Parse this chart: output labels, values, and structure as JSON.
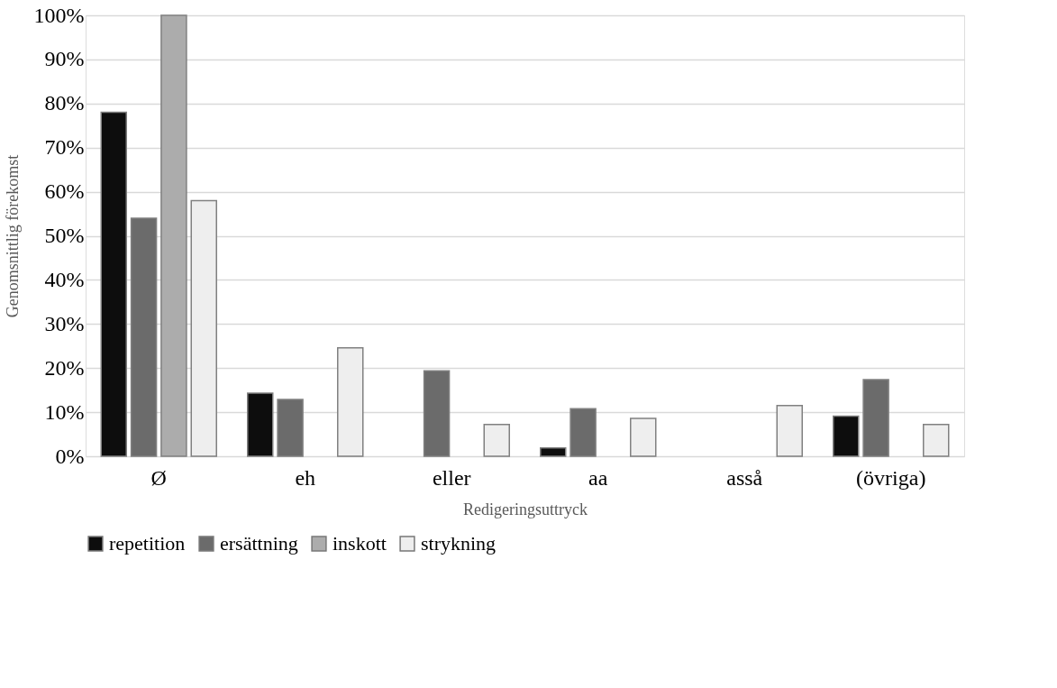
{
  "chart_data": {
    "type": "bar",
    "xlabel": "Redigeringsuttryck",
    "ylabel": "Genomsnittlig förekomst",
    "categories": [
      "Ø",
      "eh",
      "eller",
      "aa",
      "asså",
      "(övriga)"
    ],
    "series": [
      {
        "name": "repetition",
        "color": "#0d0d0d",
        "values": [
          78,
          14.3,
          null,
          1.9,
          null,
          9.1
        ]
      },
      {
        "name": "ersättning",
        "color": "#6b6b6b",
        "values": [
          54,
          12.9,
          19.4,
          10.8,
          null,
          17.4
        ]
      },
      {
        "name": "inskott",
        "color": "#acacac",
        "values": [
          100,
          null,
          null,
          null,
          null,
          null
        ]
      },
      {
        "name": "strykning",
        "color": "#eeeeee",
        "values": [
          58,
          24.6,
          7.2,
          8.6,
          11.5,
          7.2
        ]
      }
    ],
    "ylim": [
      0,
      100
    ],
    "yticks": [
      {
        "value": 0,
        "label": "0%"
      },
      {
        "value": 10,
        "label": "10%"
      },
      {
        "value": 20,
        "label": "20%"
      },
      {
        "value": 30,
        "label": "30%"
      },
      {
        "value": 40,
        "label": "40%"
      },
      {
        "value": 50,
        "label": "50%"
      },
      {
        "value": 60,
        "label": "60%"
      },
      {
        "value": 70,
        "label": "70%"
      },
      {
        "value": 80,
        "label": "80%"
      },
      {
        "value": 90,
        "label": "90%"
      },
      {
        "value": 100,
        "label": "100%"
      }
    ],
    "grid": "y",
    "legend": "bottom"
  }
}
